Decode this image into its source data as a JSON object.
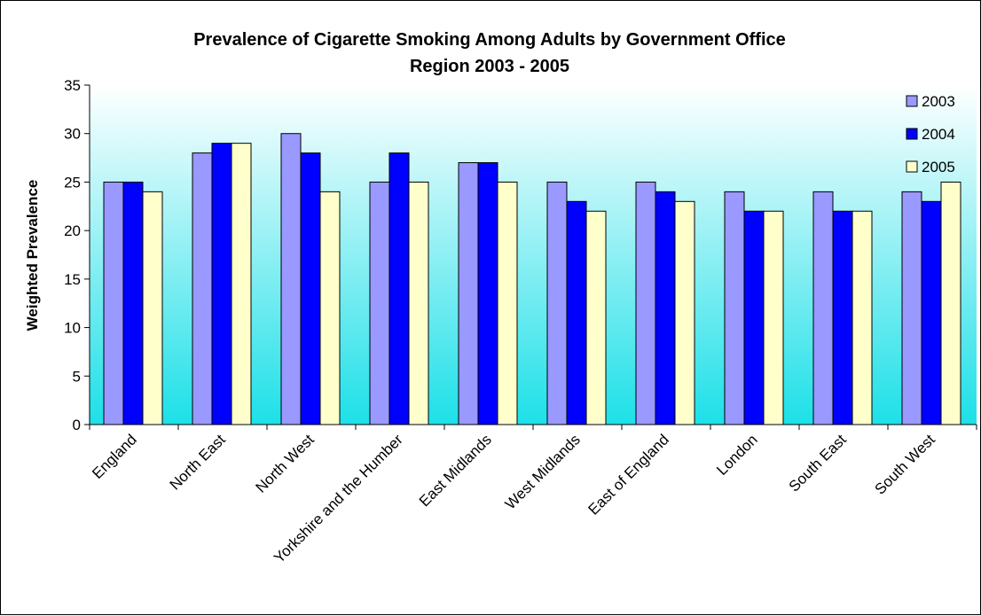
{
  "chart_data": {
    "type": "bar",
    "title": [
      "Prevalence of Cigarette Smoking Among Adults by Government Office",
      "Region 2003 - 2005"
    ],
    "xlabel": "",
    "ylabel": "Weighted Prevalence",
    "ylim": [
      0,
      35
    ],
    "yticks": [
      0,
      5,
      10,
      15,
      20,
      25,
      30,
      35
    ],
    "grid": false,
    "legend_position": "top-right",
    "categories": [
      "England",
      "North East",
      "North West",
      "Yorkshire and the Humber",
      "East Midlands",
      "West Midlands",
      "East of England",
      "London",
      "South East",
      "South West"
    ],
    "series": [
      {
        "name": "2003",
        "color": "#9999ff",
        "values": [
          25,
          28,
          30,
          25,
          27,
          25,
          25,
          24,
          24,
          24
        ]
      },
      {
        "name": "2004",
        "color": "#0000ff",
        "values": [
          25,
          29,
          28,
          28,
          27,
          23,
          24,
          22,
          22,
          23
        ]
      },
      {
        "name": "2005",
        "color": "#ffffcc",
        "values": [
          24,
          29,
          24,
          25,
          25,
          22,
          23,
          22,
          22,
          25
        ]
      }
    ],
    "plot_background": {
      "top_color": "#ffffff",
      "bottom_color": "#1de0e8"
    }
  }
}
